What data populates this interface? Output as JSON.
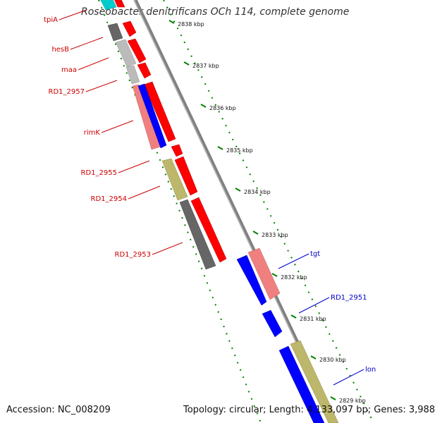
{
  "title": "Roseobacter denitrificans OCh 114, complete genome",
  "footer": {
    "accession": "Accession: NC_008209",
    "topology": "Topology: circular; Length: 4,133,097 bp; Genes: 3,988"
  },
  "ticks": [
    {
      "label": "2838 kbp",
      "kbp": 2838
    },
    {
      "label": "2837 kbp",
      "kbp": 2837
    },
    {
      "label": "2836 kbp",
      "kbp": 2836
    },
    {
      "label": "2835 kbp",
      "kbp": 2835
    },
    {
      "label": "2834 kbp",
      "kbp": 2834
    },
    {
      "label": "2833 kbp",
      "kbp": 2833
    },
    {
      "label": "2832 kbp",
      "kbp": 2832
    },
    {
      "label": "2831 kbp",
      "kbp": 2831
    },
    {
      "label": "2830 kbp",
      "kbp": 2830
    },
    {
      "label": "2829 kbp",
      "kbp": 2829
    }
  ],
  "gene_labels": [
    {
      "label": "tpiA",
      "side": "left",
      "color": "#cc0000"
    },
    {
      "label": "hesB",
      "side": "left",
      "color": "#cc0000"
    },
    {
      "label": "maa",
      "side": "left",
      "color": "#cc0000"
    },
    {
      "label": "RD1_2957",
      "side": "left",
      "color": "#cc0000"
    },
    {
      "label": "rimK",
      "side": "left",
      "color": "#cc0000"
    },
    {
      "label": "RD1_2955",
      "side": "left",
      "color": "#cc0000"
    },
    {
      "label": "RD1_2954",
      "side": "left",
      "color": "#cc0000"
    },
    {
      "label": "RD1_2953",
      "side": "left",
      "color": "#cc0000"
    },
    {
      "label": "tgt",
      "side": "right",
      "color": "#0000cc"
    },
    {
      "label": "RD1_2951",
      "side": "right",
      "color": "#0000cc"
    },
    {
      "label": "lon",
      "side": "right",
      "color": "#0000cc"
    }
  ],
  "colors": {
    "forward_cds": "#ff0000",
    "reverse_cds": "#0000ff",
    "backbone": "#808080",
    "tick_marks": "#008000",
    "dark_gene": "#666666",
    "light_gene": "#bbbbbb",
    "khaki_gene": "#bdb76b",
    "pink_gene": "#f08080",
    "cyan_gene": "#00cccc"
  }
}
